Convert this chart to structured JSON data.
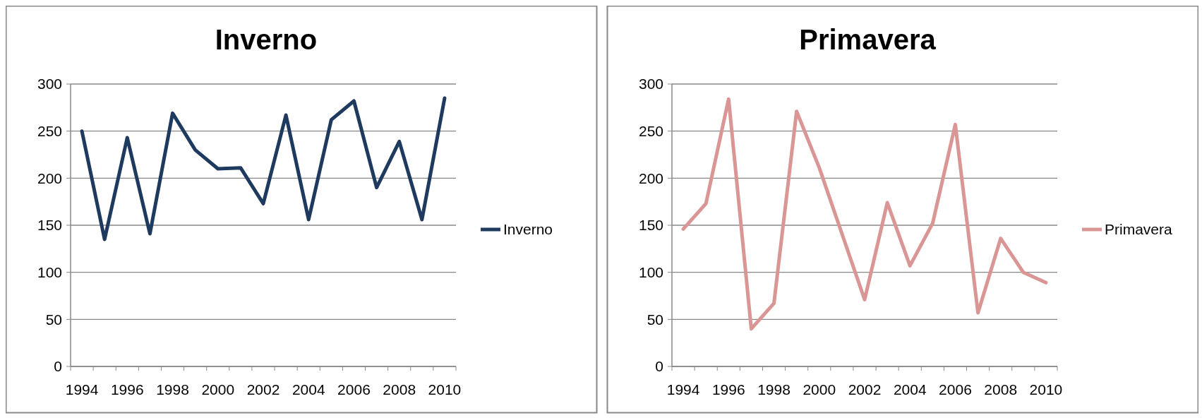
{
  "chart_data": [
    {
      "type": "line",
      "title": "Inverno",
      "categories": [
        "1994",
        null,
        "1996",
        null,
        "1998",
        null,
        "2000",
        null,
        "2002",
        null,
        "2004",
        null,
        "2006",
        null,
        "2008",
        null,
        "2010"
      ],
      "series": [
        {
          "name": "Inverno",
          "color": "#1f3a5f",
          "values": [
            250,
            135,
            243,
            141,
            269,
            230,
            210,
            211,
            173,
            267,
            156,
            262,
            282,
            190,
            239,
            156,
            285
          ]
        }
      ],
      "ylim": [
        0,
        300
      ],
      "yticks": [
        0,
        50,
        100,
        150,
        200,
        250,
        300
      ],
      "grid": "y",
      "legend": "right",
      "marker": "none"
    },
    {
      "type": "line",
      "title": "Primavera",
      "categories": [
        "1994",
        null,
        "1996",
        null,
        "1998",
        null,
        "2000",
        null,
        "2002",
        null,
        "2004",
        null,
        "2006",
        null,
        "2008",
        null,
        "2010"
      ],
      "series": [
        {
          "name": "Primavera",
          "color": "#d99694",
          "values": [
            146,
            173,
            284,
            40,
            67,
            271,
            211,
            141,
            71,
            174,
            107,
            152,
            257,
            57,
            136,
            100,
            89
          ]
        }
      ],
      "ylim": [
        0,
        300
      ],
      "yticks": [
        0,
        50,
        100,
        150,
        200,
        250,
        300
      ],
      "grid": "y",
      "legend": "right",
      "marker": "none"
    }
  ]
}
